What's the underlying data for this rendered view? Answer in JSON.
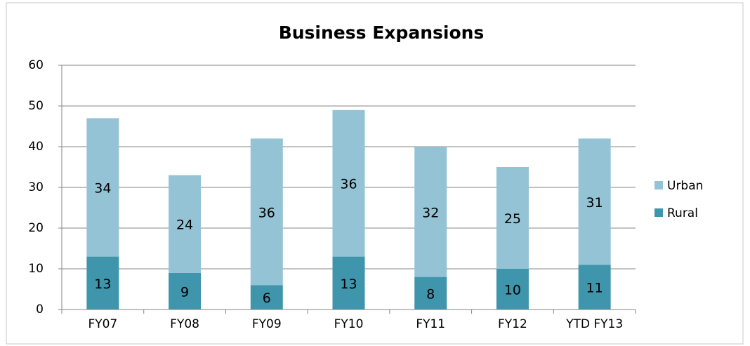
{
  "chart_data": {
    "type": "stacked_bar",
    "title": "Business Expansions",
    "categories": [
      "FY07",
      "FY08",
      "FY09",
      "FY10",
      "FY11",
      "FY12",
      "YTD FY13"
    ],
    "series": [
      {
        "name": "Rural",
        "color": "#3f95ab",
        "values": [
          13,
          9,
          6,
          13,
          8,
          10,
          11
        ]
      },
      {
        "name": "Urban",
        "color": "#93c3d5",
        "values": [
          34,
          24,
          36,
          36,
          32,
          25,
          31
        ]
      }
    ],
    "ylim": [
      0,
      60
    ],
    "yticks": [
      0,
      10,
      20,
      30,
      40,
      50,
      60
    ],
    "grid": true,
    "legend": "right"
  }
}
